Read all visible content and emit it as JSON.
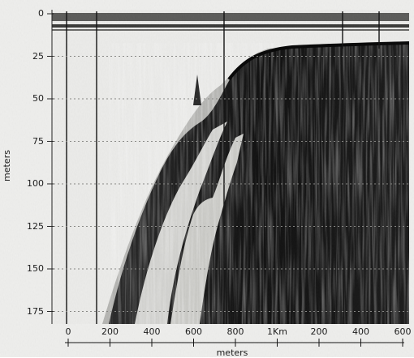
{
  "figure": {
    "kind": "echosounder record",
    "colors": {
      "paper": "#f4f4f2",
      "ink": "#111111"
    },
    "y_axis": {
      "label": "meters",
      "ticks": [
        "0",
        "25",
        "50",
        "75",
        "100",
        "125",
        "150",
        "175"
      ]
    },
    "x_axis": {
      "label": "meters",
      "ticks": [
        "0",
        "200",
        "400",
        "600",
        "800",
        "1Km",
        "200",
        "400",
        "600"
      ]
    }
  }
}
